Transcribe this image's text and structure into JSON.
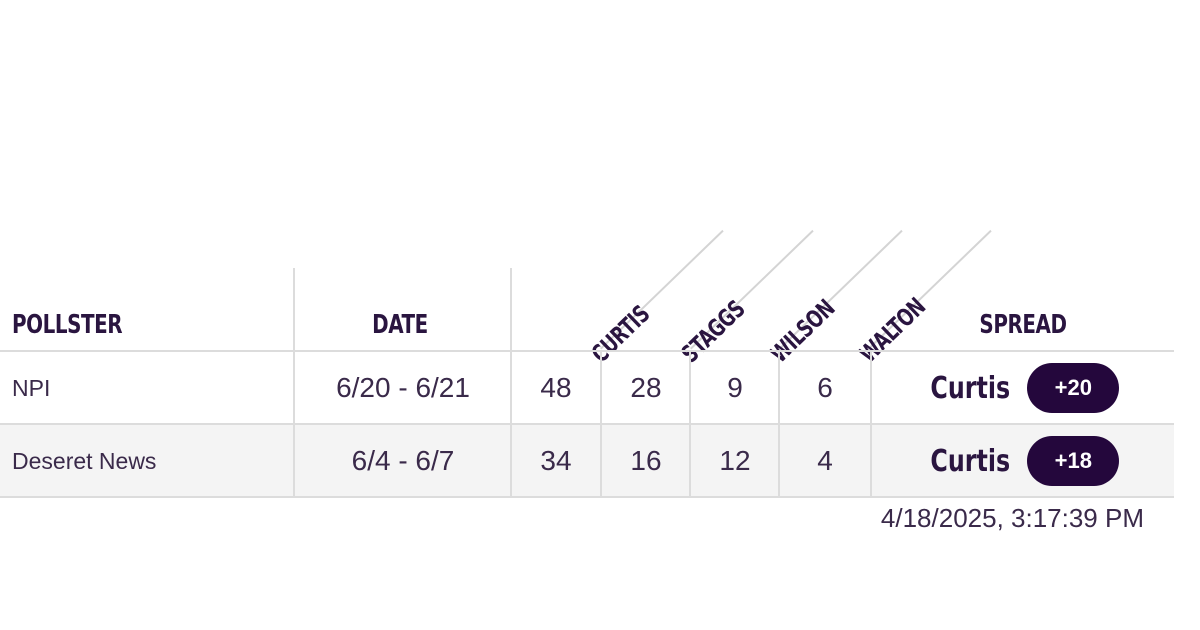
{
  "table": {
    "headers": {
      "pollster": "POLLSTER",
      "date": "DATE",
      "spread": "SPREAD",
      "candidates": [
        "CURTIS",
        "STAGGS",
        "WILSON",
        "WALTON"
      ]
    },
    "rows": [
      {
        "pollster": "NPI",
        "date": "6/20 - 6/21",
        "values": [
          "48",
          "28",
          "9",
          "6"
        ],
        "spread_name": "Curtis",
        "spread_value": "+20"
      },
      {
        "pollster": "Deseret News",
        "date": "6/4 - 6/7",
        "values": [
          "34",
          "16",
          "12",
          "4"
        ],
        "spread_name": "Curtis",
        "spread_value": "+18"
      }
    ]
  },
  "timestamp": "4/18/2025, 3:17:39 PM",
  "colors": {
    "text": "#2a1540",
    "badge_bg": "#24073c",
    "badge_text": "#ffffff",
    "row_alt": "#f4f4f4",
    "divider": "#dcdcdc"
  }
}
